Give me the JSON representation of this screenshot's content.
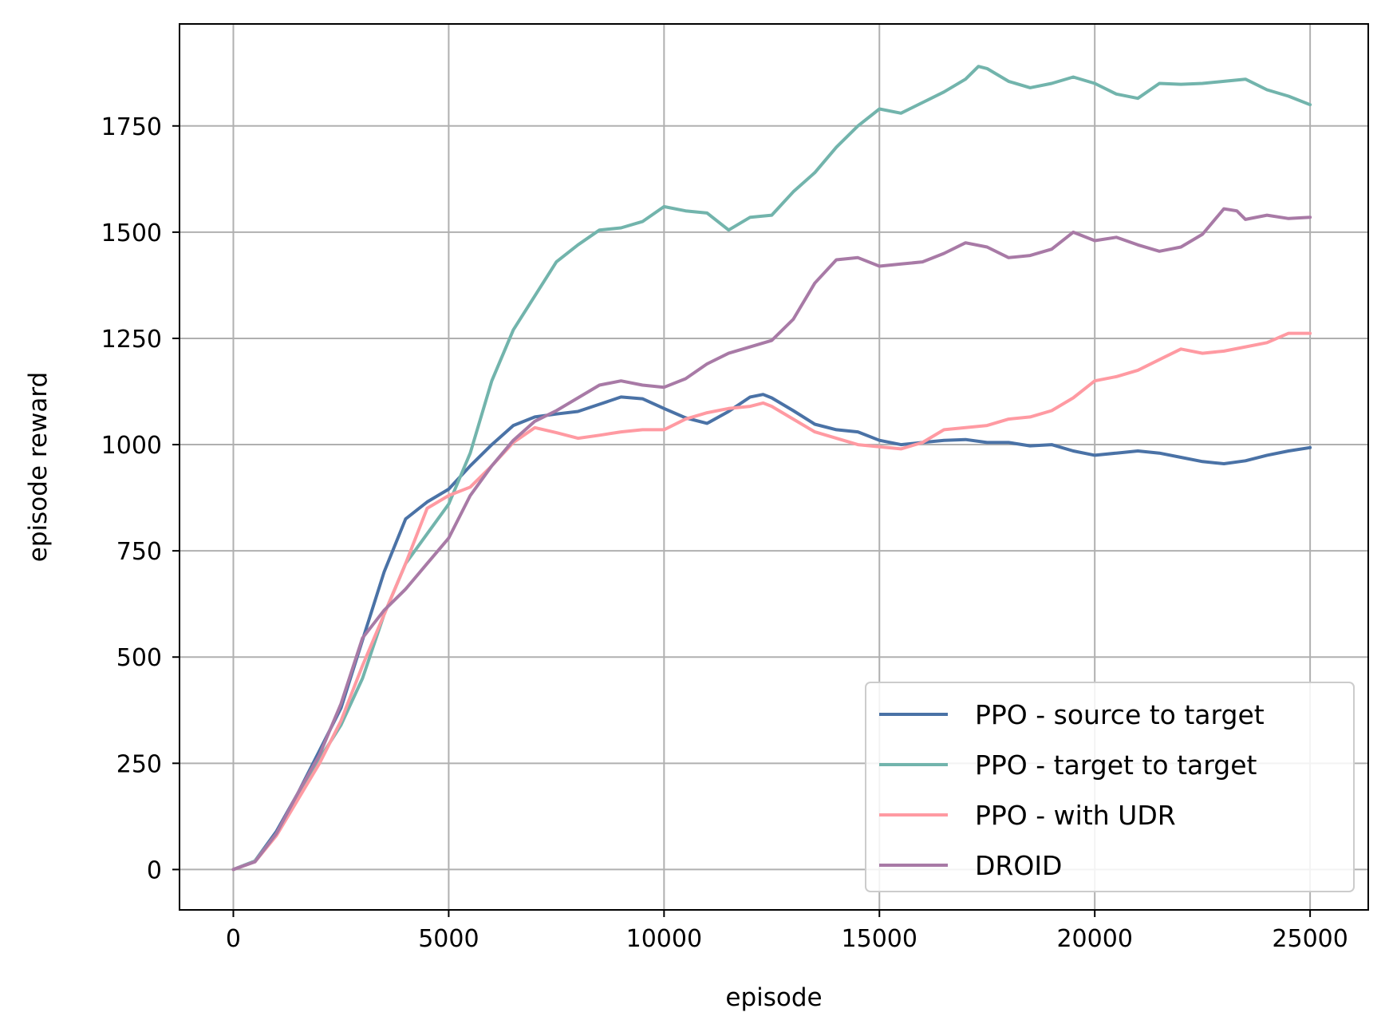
{
  "chart_data": {
    "type": "line",
    "xlabel": "episode",
    "ylabel": "episode reward",
    "xlim": [
      -1250,
      26350
    ],
    "ylim": [
      -95,
      1990
    ],
    "xticks": [
      0,
      5000,
      10000,
      15000,
      20000,
      25000
    ],
    "xtick_labels": [
      "0",
      "5000",
      "10000",
      "15000",
      "20000",
      "25000"
    ],
    "yticks": [
      0,
      250,
      500,
      750,
      1000,
      1250,
      1500,
      1750
    ],
    "ytick_labels": [
      "0",
      "250",
      "500",
      "750",
      "1000",
      "1250",
      "1500",
      "1750"
    ],
    "grid": true,
    "legend_position": "lower-right",
    "series": [
      {
        "name": "PPO - source to target",
        "color": "#4a72a6",
        "points": [
          [
            0,
            0
          ],
          [
            500,
            20
          ],
          [
            1000,
            90
          ],
          [
            1500,
            180
          ],
          [
            2000,
            280
          ],
          [
            2500,
            380
          ],
          [
            3000,
            540
          ],
          [
            3500,
            700
          ],
          [
            4000,
            825
          ],
          [
            4500,
            865
          ],
          [
            5000,
            895
          ],
          [
            5500,
            950
          ],
          [
            6000,
            1000
          ],
          [
            6500,
            1045
          ],
          [
            7000,
            1065
          ],
          [
            7500,
            1072
          ],
          [
            8000,
            1078
          ],
          [
            8500,
            1095
          ],
          [
            9000,
            1112
          ],
          [
            9500,
            1108
          ],
          [
            10000,
            1085
          ],
          [
            10500,
            1063
          ],
          [
            11000,
            1050
          ],
          [
            11500,
            1078
          ],
          [
            12000,
            1112
          ],
          [
            12300,
            1118
          ],
          [
            12500,
            1110
          ],
          [
            13000,
            1080
          ],
          [
            13500,
            1048
          ],
          [
            14000,
            1035
          ],
          [
            14500,
            1030
          ],
          [
            15000,
            1010
          ],
          [
            15500,
            1000
          ],
          [
            16000,
            1005
          ],
          [
            16500,
            1010
          ],
          [
            17000,
            1012
          ],
          [
            17500,
            1005
          ],
          [
            18000,
            1005
          ],
          [
            18500,
            997
          ],
          [
            19000,
            1000
          ],
          [
            19500,
            985
          ],
          [
            20000,
            975
          ],
          [
            20500,
            980
          ],
          [
            21000,
            985
          ],
          [
            21500,
            980
          ],
          [
            22000,
            970
          ],
          [
            22500,
            960
          ],
          [
            23000,
            955
          ],
          [
            23500,
            962
          ],
          [
            24000,
            975
          ],
          [
            24500,
            985
          ],
          [
            25000,
            993
          ]
        ]
      },
      {
        "name": "PPO - target to target",
        "color": "#72b4ac",
        "points": [
          [
            0,
            0
          ],
          [
            500,
            20
          ],
          [
            1000,
            85
          ],
          [
            1500,
            170
          ],
          [
            2000,
            260
          ],
          [
            2500,
            340
          ],
          [
            3000,
            450
          ],
          [
            3500,
            600
          ],
          [
            4000,
            720
          ],
          [
            4500,
            790
          ],
          [
            5000,
            860
          ],
          [
            5500,
            980
          ],
          [
            6000,
            1150
          ],
          [
            6500,
            1270
          ],
          [
            7000,
            1350
          ],
          [
            7500,
            1430
          ],
          [
            8000,
            1470
          ],
          [
            8500,
            1505
          ],
          [
            9000,
            1510
          ],
          [
            9500,
            1525
          ],
          [
            10000,
            1560
          ],
          [
            10500,
            1550
          ],
          [
            11000,
            1545
          ],
          [
            11500,
            1505
          ],
          [
            12000,
            1535
          ],
          [
            12500,
            1540
          ],
          [
            13000,
            1595
          ],
          [
            13500,
            1640
          ],
          [
            14000,
            1700
          ],
          [
            14500,
            1750
          ],
          [
            15000,
            1790
          ],
          [
            15500,
            1780
          ],
          [
            16000,
            1805
          ],
          [
            16500,
            1830
          ],
          [
            17000,
            1860
          ],
          [
            17300,
            1890
          ],
          [
            17500,
            1885
          ],
          [
            18000,
            1855
          ],
          [
            18500,
            1840
          ],
          [
            19000,
            1850
          ],
          [
            19500,
            1865
          ],
          [
            20000,
            1850
          ],
          [
            20500,
            1825
          ],
          [
            21000,
            1815
          ],
          [
            21500,
            1850
          ],
          [
            22000,
            1848
          ],
          [
            22500,
            1850
          ],
          [
            23000,
            1855
          ],
          [
            23500,
            1860
          ],
          [
            24000,
            1835
          ],
          [
            24500,
            1820
          ],
          [
            25000,
            1800
          ]
        ]
      },
      {
        "name": "PPO - with UDR",
        "color": "#ff9aa2",
        "points": [
          [
            0,
            0
          ],
          [
            500,
            18
          ],
          [
            1000,
            80
          ],
          [
            1500,
            165
          ],
          [
            2000,
            250
          ],
          [
            2500,
            350
          ],
          [
            3000,
            480
          ],
          [
            3500,
            600
          ],
          [
            4000,
            720
          ],
          [
            4500,
            850
          ],
          [
            5000,
            880
          ],
          [
            5500,
            900
          ],
          [
            6000,
            950
          ],
          [
            6500,
            1005
          ],
          [
            7000,
            1040
          ],
          [
            7500,
            1028
          ],
          [
            8000,
            1015
          ],
          [
            8500,
            1022
          ],
          [
            9000,
            1030
          ],
          [
            9500,
            1035
          ],
          [
            10000,
            1035
          ],
          [
            10500,
            1060
          ],
          [
            11000,
            1075
          ],
          [
            11500,
            1085
          ],
          [
            12000,
            1090
          ],
          [
            12300,
            1098
          ],
          [
            12500,
            1090
          ],
          [
            13000,
            1060
          ],
          [
            13500,
            1030
          ],
          [
            14000,
            1015
          ],
          [
            14500,
            1000
          ],
          [
            15000,
            995
          ],
          [
            15500,
            990
          ],
          [
            16000,
            1005
          ],
          [
            16500,
            1035
          ],
          [
            17000,
            1040
          ],
          [
            17500,
            1045
          ],
          [
            18000,
            1060
          ],
          [
            18500,
            1065
          ],
          [
            19000,
            1080
          ],
          [
            19500,
            1110
          ],
          [
            20000,
            1150
          ],
          [
            20500,
            1160
          ],
          [
            21000,
            1175
          ],
          [
            21500,
            1200
          ],
          [
            22000,
            1225
          ],
          [
            22500,
            1215
          ],
          [
            23000,
            1220
          ],
          [
            23500,
            1230
          ],
          [
            24000,
            1240
          ],
          [
            24500,
            1262
          ],
          [
            25000,
            1262
          ]
        ]
      },
      {
        "name": "DROID",
        "color": "#a87aa6",
        "points": [
          [
            0,
            0
          ],
          [
            500,
            18
          ],
          [
            1000,
            85
          ],
          [
            1500,
            180
          ],
          [
            2000,
            270
          ],
          [
            2500,
            390
          ],
          [
            3000,
            545
          ],
          [
            3500,
            610
          ],
          [
            4000,
            660
          ],
          [
            4500,
            720
          ],
          [
            5000,
            780
          ],
          [
            5500,
            880
          ],
          [
            6000,
            950
          ],
          [
            6500,
            1010
          ],
          [
            7000,
            1055
          ],
          [
            7500,
            1080
          ],
          [
            8000,
            1110
          ],
          [
            8500,
            1140
          ],
          [
            9000,
            1150
          ],
          [
            9500,
            1140
          ],
          [
            10000,
            1135
          ],
          [
            10500,
            1155
          ],
          [
            11000,
            1190
          ],
          [
            11500,
            1215
          ],
          [
            12000,
            1230
          ],
          [
            12500,
            1245
          ],
          [
            13000,
            1295
          ],
          [
            13500,
            1380
          ],
          [
            14000,
            1435
          ],
          [
            14500,
            1440
          ],
          [
            15000,
            1420
          ],
          [
            15500,
            1425
          ],
          [
            16000,
            1430
          ],
          [
            16500,
            1450
          ],
          [
            17000,
            1475
          ],
          [
            17500,
            1465
          ],
          [
            18000,
            1440
          ],
          [
            18500,
            1445
          ],
          [
            19000,
            1460
          ],
          [
            19500,
            1500
          ],
          [
            20000,
            1480
          ],
          [
            20500,
            1488
          ],
          [
            21000,
            1470
          ],
          [
            21500,
            1455
          ],
          [
            22000,
            1465
          ],
          [
            22500,
            1495
          ],
          [
            23000,
            1555
          ],
          [
            23300,
            1550
          ],
          [
            23500,
            1530
          ],
          [
            24000,
            1540
          ],
          [
            24500,
            1532
          ],
          [
            25000,
            1535
          ]
        ]
      }
    ]
  }
}
